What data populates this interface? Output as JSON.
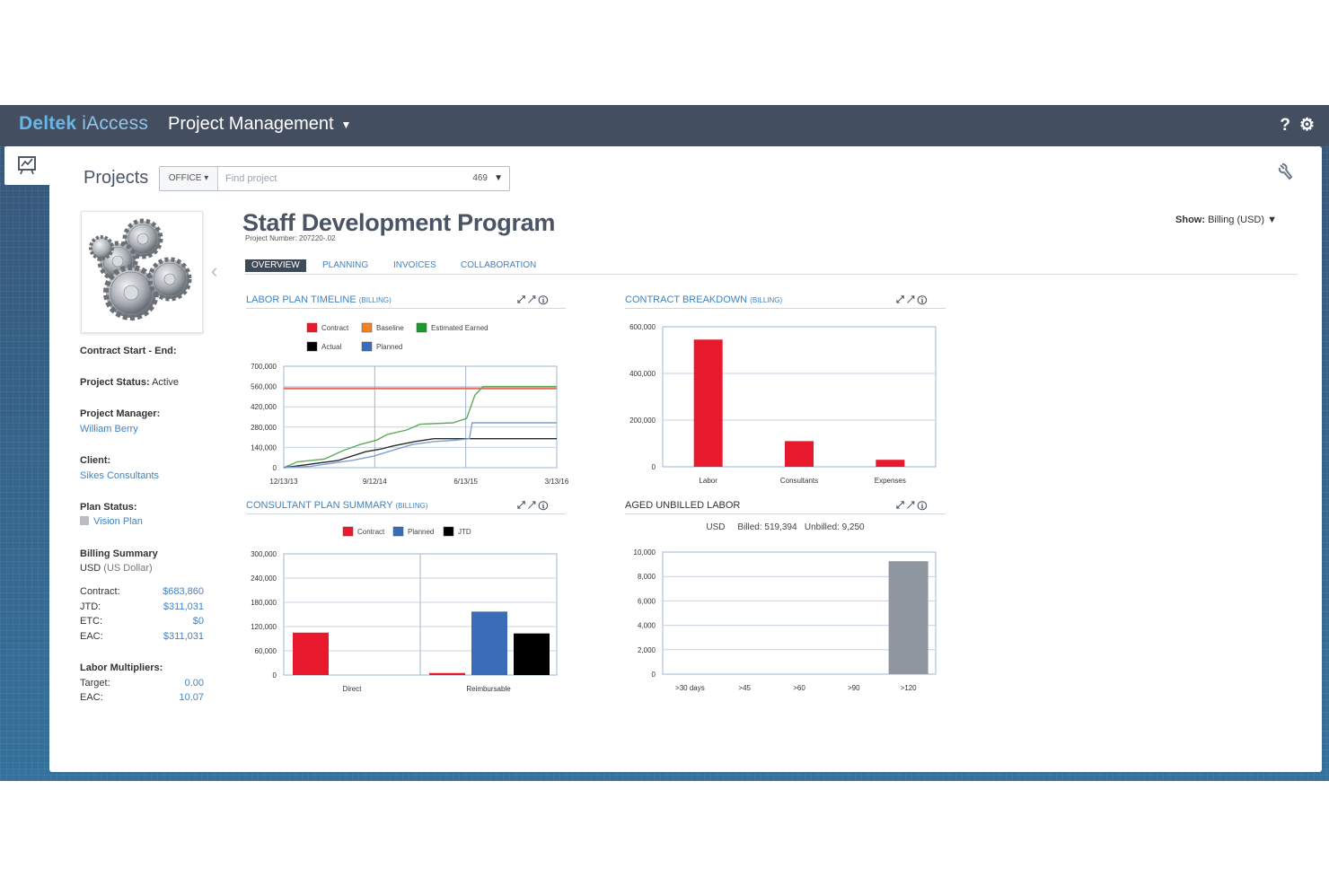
{
  "app": {
    "brand": "Deltek",
    "brand_sub": "iAccess",
    "module": "Project Management",
    "help_icon": "?",
    "gear_icon": "⚙"
  },
  "search": {
    "title": "Projects",
    "office_label": "OFFICE ▾",
    "placeholder": "Find project",
    "count": "469"
  },
  "project": {
    "name": "Staff Development Program",
    "number": "Project Number: 207220-.02",
    "show_label": "Show:",
    "show_value": "Billing (USD)",
    "tabs": [
      "OVERVIEW",
      "PLANNING",
      "INVOICES",
      "COLLABORATION"
    ]
  },
  "sidebar": {
    "contract_label": "Contract Start - End:",
    "status_label": "Project Status:",
    "status_value": "Active",
    "manager_label": "Project Manager:",
    "manager_value": "William Berry",
    "client_label": "Client:",
    "client_value": "Sikes Consultants",
    "plan_label": "Plan Status:",
    "plan_value": "Vision Plan",
    "billing_label": "Billing Summary",
    "billing_currency": "USD",
    "billing_currency_desc": "(US Dollar)",
    "billing": [
      {
        "k": "Contract:",
        "v": "$683,860"
      },
      {
        "k": "JTD:",
        "v": "$311,031"
      },
      {
        "k": "ETC:",
        "v": "$0"
      },
      {
        "k": "EAC:",
        "v": "$311,031"
      }
    ],
    "multipliers_label": "Labor Multipliers:",
    "multipliers": [
      {
        "k": "Target:",
        "v": "0.00"
      },
      {
        "k": "EAC:",
        "v": "10.07"
      }
    ]
  },
  "widgets": {
    "labor": {
      "title": "LABOR PLAN TIMELINE",
      "sub": "(BILLING)"
    },
    "contract": {
      "title": "CONTRACT BREAKDOWN",
      "sub": "(BILLING)"
    },
    "consultant": {
      "title": "CONSULTANT PLAN SUMMARY",
      "sub": "(BILLING)"
    },
    "aged": {
      "title": "AGED UNBILLED LABOR",
      "summary": "USD     Billed: 519,394   Unbilled: 9,250"
    }
  },
  "colors": {
    "contract": "#e8192c",
    "baseline": "#f7801f",
    "earned": "#1a9a2b",
    "actual": "#000000",
    "planned": "#3a6cb7",
    "aged": "#8e979f",
    "link": "#3f83c4"
  },
  "chart_data": [
    {
      "type": "line",
      "title": "LABOR PLAN TIMELINE",
      "x_ticks": [
        "12/13/13",
        "9/12/14",
        "6/13/15",
        "3/13/16"
      ],
      "ylim": [
        0,
        700000
      ],
      "y_ticks": [
        "700,000",
        "560,000",
        "420,000",
        "280,000",
        "140,000",
        "0"
      ],
      "legend": [
        "Contract",
        "Baseline",
        "Estimated Earned",
        "Actual",
        "Planned"
      ],
      "series": [
        {
          "name": "Contract",
          "values": [
            [
              0,
              550000
            ],
            [
              1,
              550000
            ]
          ]
        },
        {
          "name": "Baseline",
          "values": [
            [
              0,
              545000
            ],
            [
              1,
              545000
            ]
          ]
        },
        {
          "name": "Estimated Earned",
          "values": [
            [
              0,
              0
            ],
            [
              0.05,
              40000
            ],
            [
              0.15,
              60000
            ],
            [
              0.22,
              120000
            ],
            [
              0.28,
              160000
            ],
            [
              0.34,
              190000
            ],
            [
              0.38,
              230000
            ],
            [
              0.45,
              260000
            ],
            [
              0.5,
              300000
            ],
            [
              0.62,
              310000
            ],
            [
              0.67,
              340000
            ],
            [
              0.7,
              500000
            ],
            [
              0.73,
              560000
            ],
            [
              1,
              560000
            ]
          ]
        },
        {
          "name": "Actual",
          "values": [
            [
              0,
              0
            ],
            [
              0.08,
              20000
            ],
            [
              0.2,
              50000
            ],
            [
              0.3,
              110000
            ],
            [
              0.36,
              130000
            ],
            [
              0.4,
              150000
            ],
            [
              0.48,
              180000
            ],
            [
              0.55,
              200000
            ],
            [
              0.68,
              200000
            ],
            [
              1,
              200000
            ]
          ]
        },
        {
          "name": "Planned",
          "values": [
            [
              0,
              0
            ],
            [
              0.1,
              10000
            ],
            [
              0.25,
              50000
            ],
            [
              0.33,
              80000
            ],
            [
              0.4,
              120000
            ],
            [
              0.47,
              160000
            ],
            [
              0.55,
              180000
            ],
            [
              0.63,
              190000
            ],
            [
              0.68,
              200000
            ],
            [
              0.69,
              310000
            ],
            [
              1,
              310000
            ]
          ]
        }
      ]
    },
    {
      "type": "bar",
      "title": "CONTRACT BREAKDOWN",
      "categories": [
        "Labor",
        "Consultants",
        "Expenses"
      ],
      "values": [
        545000,
        110000,
        30000
      ],
      "ylim": [
        0,
        600000
      ],
      "y_ticks": [
        "600,000",
        "400,000",
        "200,000",
        "0"
      ]
    },
    {
      "type": "bar",
      "title": "CONSULTANT PLAN SUMMARY",
      "categories": [
        "Direct",
        "Reimbursable"
      ],
      "legend": [
        "Contract",
        "Planned",
        "JTD"
      ],
      "series": [
        {
          "name": "Contract",
          "values": [
            105000,
            5000
          ]
        },
        {
          "name": "Planned",
          "values": [
            0,
            157000
          ]
        },
        {
          "name": "JTD",
          "values": [
            0,
            103000
          ]
        }
      ],
      "ylim": [
        0,
        300000
      ],
      "y_ticks": [
        "300,000",
        "240,000",
        "180,000",
        "120,000",
        "60,000",
        "0"
      ]
    },
    {
      "type": "bar",
      "title": "AGED UNBILLED LABOR",
      "categories": [
        ">30 days",
        ">45",
        ">60",
        ">90",
        ">120"
      ],
      "values": [
        0,
        0,
        0,
        0,
        9250
      ],
      "ylim": [
        0,
        10000
      ],
      "y_ticks": [
        "10,000",
        "8,000",
        "6,000",
        "4,000",
        "2,000",
        "0"
      ]
    }
  ]
}
